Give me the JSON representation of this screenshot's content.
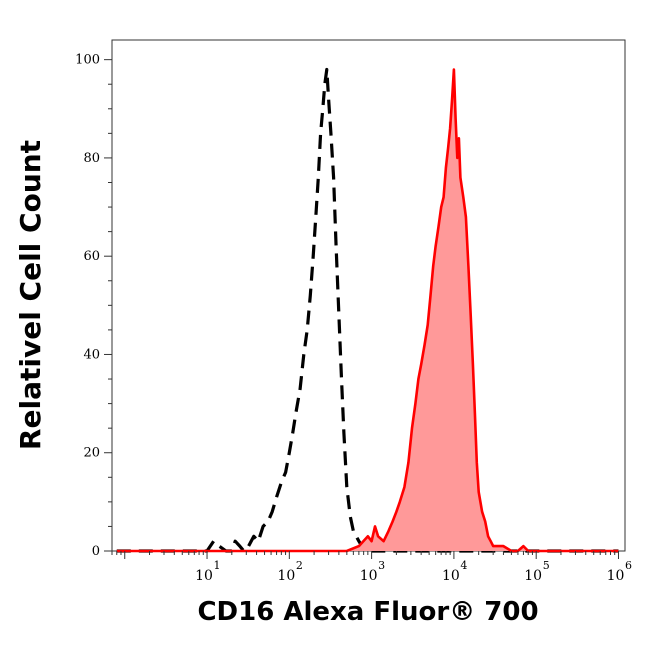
{
  "chart_data": {
    "type": "area",
    "title": "",
    "xlabel": "CD16 Alexa Fluor® 700",
    "ylabel": "Relativel Cell Count",
    "x_scale": "log",
    "xlim": [
      0.7,
      1200000
    ],
    "ylim": [
      0,
      104
    ],
    "grid": false,
    "legend": "none",
    "x_ticks": [
      {
        "base": "10",
        "exp": "1",
        "value": 10
      },
      {
        "base": "10",
        "exp": "2",
        "value": 100
      },
      {
        "base": "10",
        "exp": "3",
        "value": 1000
      },
      {
        "base": "10",
        "exp": "4",
        "value": 10000
      },
      {
        "base": "10",
        "exp": "5",
        "value": 100000
      },
      {
        "base": "10",
        "exp": "6",
        "value": 1000000
      }
    ],
    "y_ticks": [
      "0",
      "20",
      "40",
      "60",
      "80",
      "100"
    ],
    "series": [
      {
        "style": "dashed-line",
        "color": "#000000",
        "x": [
          0.8,
          5,
          10,
          12,
          14,
          17,
          20,
          22,
          25,
          28,
          32,
          37,
          42,
          48,
          55,
          62,
          70,
          80,
          90,
          100,
          110,
          120,
          135,
          150,
          165,
          180,
          195,
          210,
          225,
          240,
          255,
          270,
          285,
          300,
          320,
          345,
          370,
          400,
          430,
          460,
          500,
          550,
          600,
          650,
          700,
          760,
          820,
          900,
          1000,
          1200,
          2000,
          10000,
          1000000
        ],
        "values": [
          0,
          0,
          0,
          2,
          1,
          0,
          0,
          2,
          1,
          0,
          1,
          3,
          2,
          5,
          6,
          8,
          11,
          14,
          16,
          20,
          24,
          28,
          33,
          40,
          45,
          52,
          60,
          68,
          76,
          85,
          90,
          95,
          98,
          92,
          85,
          76,
          62,
          48,
          35,
          24,
          13,
          7,
          4,
          3,
          2,
          1,
          0,
          0,
          0,
          0,
          0,
          0,
          0
        ]
      },
      {
        "style": "filled-line",
        "color": "#ff0000",
        "fill": "#ff9999",
        "x": [
          0.8,
          10,
          100,
          500,
          700,
          900,
          1000,
          1100,
          1200,
          1400,
          1600,
          1800,
          2000,
          2200,
          2500,
          2800,
          3100,
          3400,
          3700,
          4000,
          4400,
          4800,
          5200,
          5600,
          6000,
          6500,
          7000,
          7500,
          8000,
          8500,
          9000,
          9500,
          10000,
          10500,
          11000,
          11500,
          12000,
          13000,
          14000,
          15000,
          16000,
          17000,
          18000,
          19000,
          20000,
          22000,
          24000,
          26000,
          28000,
          30000,
          35000,
          40000,
          50000,
          60000,
          70000,
          80000,
          100000,
          200000,
          1000000
        ],
        "values": [
          0,
          0,
          0,
          0,
          1,
          3,
          2,
          5,
          3,
          2,
          4,
          6,
          8,
          10,
          13,
          18,
          25,
          30,
          35,
          38,
          42,
          46,
          52,
          58,
          62,
          66,
          70,
          72,
          78,
          82,
          86,
          92,
          98,
          88,
          80,
          84,
          76,
          72,
          68,
          58,
          48,
          38,
          28,
          18,
          12,
          8,
          6,
          3,
          2,
          1,
          1,
          1,
          0,
          0,
          1,
          0,
          0,
          0,
          0
        ]
      }
    ]
  }
}
